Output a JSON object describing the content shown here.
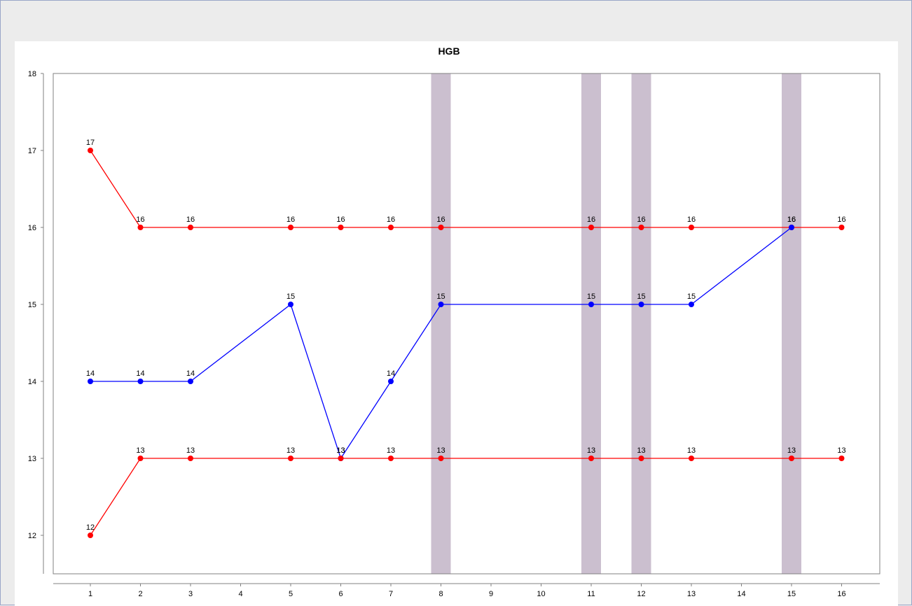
{
  "colors": {
    "background": "#ececec",
    "plot_background": "#ffffff",
    "band": "#cbbfcf",
    "blue_series": "#0000ff",
    "red_series": "#ff0000",
    "axis": "#808080"
  },
  "chart_data": {
    "type": "line",
    "title": "HGB",
    "xlabel": "",
    "ylabel": "",
    "categories": [
      "1",
      "2",
      "3",
      "4",
      "5",
      "6",
      "7",
      "8",
      "9",
      "10",
      "11",
      "12",
      "13",
      "14",
      "15",
      "16"
    ],
    "yticks": [
      12,
      13,
      14,
      15,
      16,
      17,
      18
    ],
    "ylim": [
      11.5,
      18
    ],
    "grid": false,
    "legend": "none",
    "highlight_bands": [
      "8",
      "11",
      "12",
      "15"
    ],
    "series": [
      {
        "color": "#ff0000",
        "points": [
          {
            "x": "1",
            "y": 17
          },
          {
            "x": "2",
            "y": 16
          },
          {
            "x": "3",
            "y": 16
          },
          {
            "x": "5",
            "y": 16
          },
          {
            "x": "6",
            "y": 16
          },
          {
            "x": "7",
            "y": 16
          },
          {
            "x": "8",
            "y": 16
          },
          {
            "x": "11",
            "y": 16
          },
          {
            "x": "12",
            "y": 16
          },
          {
            "x": "13",
            "y": 16
          },
          {
            "x": "15",
            "y": 16
          },
          {
            "x": "16",
            "y": 16
          }
        ]
      },
      {
        "color": "#0000ff",
        "points": [
          {
            "x": "1",
            "y": 14
          },
          {
            "x": "2",
            "y": 14
          },
          {
            "x": "3",
            "y": 14
          },
          {
            "x": "5",
            "y": 15
          },
          {
            "x": "6",
            "y": 13
          },
          {
            "x": "7",
            "y": 14
          },
          {
            "x": "8",
            "y": 15
          },
          {
            "x": "11",
            "y": 15
          },
          {
            "x": "12",
            "y": 15
          },
          {
            "x": "13",
            "y": 15
          },
          {
            "x": "15",
            "y": 16
          }
        ]
      },
      {
        "color": "#ff0000",
        "points": [
          {
            "x": "1",
            "y": 12
          },
          {
            "x": "2",
            "y": 13
          },
          {
            "x": "3",
            "y": 13
          },
          {
            "x": "5",
            "y": 13
          },
          {
            "x": "6",
            "y": 13
          },
          {
            "x": "7",
            "y": 13
          },
          {
            "x": "8",
            "y": 13
          },
          {
            "x": "11",
            "y": 13
          },
          {
            "x": "12",
            "y": 13
          },
          {
            "x": "13",
            "y": 13
          },
          {
            "x": "15",
            "y": 13
          },
          {
            "x": "16",
            "y": 13
          }
        ]
      }
    ]
  }
}
